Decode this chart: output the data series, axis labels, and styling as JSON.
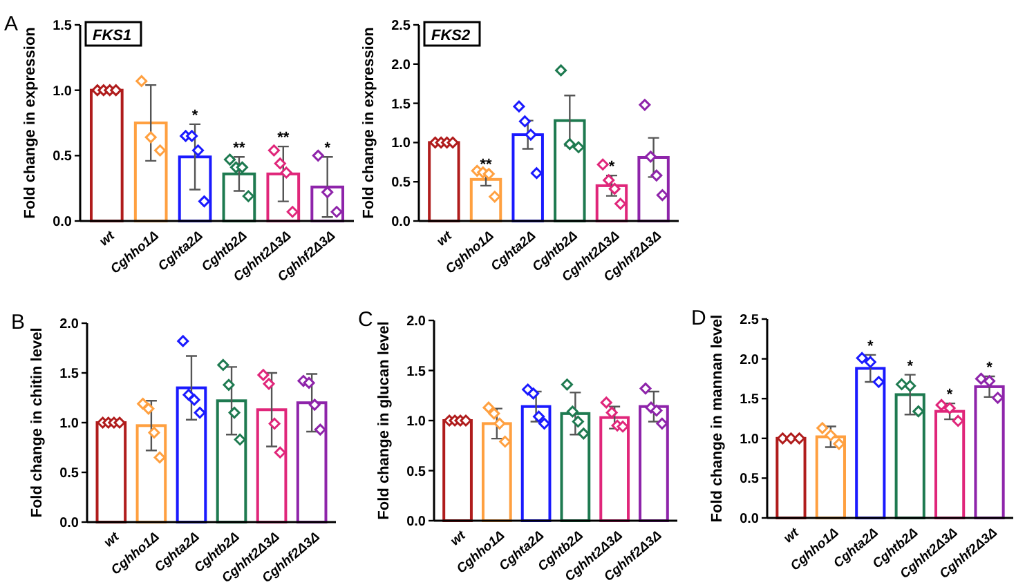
{
  "chart_data": [
    {
      "type": "bar",
      "title": "FKS1",
      "ylabel": "Fold change in expression",
      "categories": [
        "wt",
        "Cghho1Δ",
        "Cghta2Δ",
        "Cghtb2Δ",
        "Cghht2Δ3Δ",
        "Cghhf2Δ3Δ"
      ],
      "series": [
        {
          "values": [
            1.0,
            0.75,
            0.49,
            0.36,
            0.36,
            0.26
          ],
          "colors": [
            "#b01c1c",
            "#ffa040",
            "#1a1aff",
            "#1e7a50",
            "#e0267a",
            "#8e24aa"
          ],
          "errors": [
            0,
            0.29,
            0.25,
            0.13,
            0.21,
            0.23
          ]
        },
        {
          "type": "scatter",
          "marker": "diamond",
          "x": [
            "wt",
            "wt",
            "wt",
            "wt",
            "Cghho1Δ",
            "Cghho1Δ",
            "Cghho1Δ",
            "Cghta2Δ",
            "Cghta2Δ",
            "Cghta2Δ",
            "Cghta2Δ",
            "Cghtb2Δ",
            "Cghtb2Δ",
            "Cghtb2Δ",
            "Cghtb2Δ",
            "Cghht2Δ3Δ",
            "Cghht2Δ3Δ",
            "Cghht2Δ3Δ",
            "Cghht2Δ3Δ",
            "Cghhf2Δ3Δ",
            "Cghhf2Δ3Δ",
            "Cghhf2Δ3Δ"
          ],
          "values": [
            1,
            1,
            1,
            1,
            1.07,
            0.64,
            0.54,
            0.65,
            0.65,
            0.54,
            0.15,
            0.47,
            0.41,
            0.41,
            0.19,
            0.54,
            0.44,
            0.37,
            0.07,
            0.5,
            0.22,
            0.07
          ],
          "colors": [
            "#b01c1c",
            "#b01c1c",
            "#b01c1c",
            "#b01c1c",
            "#ffa040",
            "#ffa040",
            "#ffa040",
            "#1a1aff",
            "#1a1aff",
            "#1a1aff",
            "#1a1aff",
            "#1e7a50",
            "#1e7a50",
            "#1e7a50",
            "#1e7a50",
            "#e0267a",
            "#e0267a",
            "#e0267a",
            "#e0267a",
            "#8e24aa",
            "#8e24aa",
            "#8e24aa"
          ]
        }
      ],
      "ylim": [
        0,
        1.5
      ],
      "yticks": [
        {
          "value": 0,
          "label": "0.0"
        },
        0.5,
        {
          "value": 1,
          "label": "1.0"
        },
        1.5
      ],
      "annotations": [
        "A",
        {
          "text": "*",
          "x": "Cghta2Δ",
          "y": 0.74
        },
        {
          "text": "**",
          "x": "Cghtb2Δ",
          "y": 0.49
        },
        {
          "text": "**",
          "x": "Cghht2Δ3Δ",
          "y": 0.57
        },
        {
          "text": "*",
          "x": "Cghhf2Δ3Δ",
          "y": 0.49
        }
      ]
    },
    {
      "type": "bar",
      "title": "FKS2",
      "ylabel": "Fold change in expression",
      "categories": [
        "wt",
        "Cghho1Δ",
        "Cghta2Δ",
        "Cghtb2Δ",
        "Cghht2Δ3Δ",
        "Cghhf2Δ3Δ"
      ],
      "series": [
        {
          "values": [
            1.0,
            0.53,
            1.1,
            1.28,
            0.45,
            0.81
          ],
          "colors": [
            "#b01c1c",
            "#ffa040",
            "#1a1aff",
            "#1e7a50",
            "#e0267a",
            "#8e24aa"
          ],
          "errors": [
            0,
            0.08,
            0.18,
            0.32,
            0.13,
            0.25
          ]
        },
        {
          "type": "scatter",
          "marker": "diamond",
          "x": [
            "wt",
            "wt",
            "wt",
            "wt",
            "Cghho1Δ",
            "Cghho1Δ",
            "Cghho1Δ",
            "Cghho1Δ",
            "Cghta2Δ",
            "Cghta2Δ",
            "Cghta2Δ",
            "Cghta2Δ",
            "Cghtb2Δ",
            "Cghtb2Δ",
            "Cghtb2Δ",
            "Cghht2Δ3Δ",
            "Cghht2Δ3Δ",
            "Cghht2Δ3Δ",
            "Cghht2Δ3Δ",
            "Cghhf2Δ3Δ",
            "Cghhf2Δ3Δ",
            "Cghhf2Δ3Δ",
            "Cghhf2Δ3Δ"
          ],
          "values": [
            1,
            1,
            1,
            1,
            0.64,
            0.62,
            0.6,
            0.31,
            1.46,
            1.27,
            1.1,
            0.61,
            1.92,
            0.98,
            0.94,
            0.72,
            0.52,
            0.41,
            0.22,
            1.48,
            0.82,
            0.58,
            0.33
          ],
          "colors": [
            "#b01c1c",
            "#b01c1c",
            "#b01c1c",
            "#b01c1c",
            "#ffa040",
            "#ffa040",
            "#ffa040",
            "#ffa040",
            "#1a1aff",
            "#1a1aff",
            "#1a1aff",
            "#1a1aff",
            "#1e7a50",
            "#1e7a50",
            "#1e7a50",
            "#e0267a",
            "#e0267a",
            "#e0267a",
            "#e0267a",
            "#8e24aa",
            "#8e24aa",
            "#8e24aa",
            "#8e24aa"
          ]
        }
      ],
      "ylim": [
        0,
        2.5
      ],
      "yticks": [
        {
          "value": 0,
          "label": "0.0"
        },
        0.5,
        {
          "value": 1,
          "label": "1.0"
        },
        1.5,
        {
          "value": 2,
          "label": "2.0"
        },
        2.5
      ],
      "annotations": [
        {
          "text": "**",
          "x": "Cghho1Δ",
          "y": 0.61
        },
        {
          "text": "*",
          "x": "Cghht2Δ3Δ",
          "y": 0.58
        }
      ]
    },
    {
      "type": "bar",
      "ylabel": "Fold change in chitin level",
      "categories": [
        "wt",
        "Cghho1Δ",
        "Cghta2Δ",
        "Cghtb2Δ",
        "Cghht2Δ3Δ",
        "Cghhf2Δ3Δ"
      ],
      "series": [
        {
          "values": [
            1.0,
            0.97,
            1.35,
            1.22,
            1.13,
            1.2
          ],
          "colors": [
            "#b01c1c",
            "#ffa040",
            "#1a1aff",
            "#1e7a50",
            "#e0267a",
            "#8e24aa"
          ],
          "errors": [
            0,
            0.25,
            0.32,
            0.34,
            0.37,
            0.29
          ]
        },
        {
          "type": "scatter",
          "marker": "diamond",
          "x": [
            "wt",
            "wt",
            "wt",
            "wt",
            "Cghho1Δ",
            "Cghho1Δ",
            "Cghho1Δ",
            "Cghho1Δ",
            "Cghta2Δ",
            "Cghta2Δ",
            "Cghta2Δ",
            "Cghta2Δ",
            "Cghtb2Δ",
            "Cghtb2Δ",
            "Cghtb2Δ",
            "Cghtb2Δ",
            "Cghht2Δ3Δ",
            "Cghht2Δ3Δ",
            "Cghht2Δ3Δ",
            "Cghht2Δ3Δ",
            "Cghhf2Δ3Δ",
            "Cghhf2Δ3Δ",
            "Cghhf2Δ3Δ",
            "Cghhf2Δ3Δ"
          ],
          "values": [
            1,
            1,
            1,
            1,
            1.19,
            1.14,
            0.9,
            0.65,
            1.82,
            1.28,
            1.23,
            1.1,
            1.58,
            1.38,
            1.1,
            0.83,
            1.48,
            1.39,
            0.99,
            0.7,
            1.42,
            1.4,
            1.18,
            0.93
          ],
          "colors": [
            "#b01c1c",
            "#b01c1c",
            "#b01c1c",
            "#b01c1c",
            "#ffa040",
            "#ffa040",
            "#ffa040",
            "#ffa040",
            "#1a1aff",
            "#1a1aff",
            "#1a1aff",
            "#1a1aff",
            "#1e7a50",
            "#1e7a50",
            "#1e7a50",
            "#1e7a50",
            "#e0267a",
            "#e0267a",
            "#e0267a",
            "#e0267a",
            "#8e24aa",
            "#8e24aa",
            "#8e24aa",
            "#8e24aa"
          ]
        }
      ],
      "ylim": [
        0,
        2
      ],
      "yticks": [
        {
          "value": 0,
          "label": "0.0"
        },
        0.5,
        {
          "value": 1,
          "label": "1.0"
        },
        1.5,
        {
          "value": 2,
          "label": "2.0"
        }
      ],
      "annotations": [
        "B"
      ]
    },
    {
      "type": "bar",
      "ylabel": "Fold change in glucan level",
      "categories": [
        "wt",
        "Cghho1Δ",
        "Cghta2Δ",
        "Cghtb2Δ",
        "Cghht2Δ3Δ",
        "Cghhf2Δ3Δ"
      ],
      "series": [
        {
          "values": [
            1.0,
            0.97,
            1.14,
            1.07,
            1.03,
            1.14
          ],
          "colors": [
            "#b01c1c",
            "#ffa040",
            "#1a1aff",
            "#1e7a50",
            "#e0267a",
            "#8e24aa"
          ],
          "errors": [
            0,
            0.15,
            0.15,
            0.21,
            0.11,
            0.15
          ]
        },
        {
          "type": "scatter",
          "marker": "diamond",
          "x": [
            "wt",
            "wt",
            "wt",
            "wt",
            "Cghho1Δ",
            "Cghho1Δ",
            "Cghho1Δ",
            "Cghho1Δ",
            "Cghta2Δ",
            "Cghta2Δ",
            "Cghta2Δ",
            "Cghta2Δ",
            "Cghtb2Δ",
            "Cghtb2Δ",
            "Cghtb2Δ",
            "Cghtb2Δ",
            "Cghht2Δ3Δ",
            "Cghht2Δ3Δ",
            "Cghht2Δ3Δ",
            "Cghht2Δ3Δ",
            "Cghhf2Δ3Δ",
            "Cghhf2Δ3Δ",
            "Cghhf2Δ3Δ",
            "Cghhf2Δ3Δ"
          ],
          "values": [
            1,
            1,
            1,
            1,
            1.13,
            1.07,
            0.97,
            0.79,
            1.31,
            1.27,
            1.04,
            0.97,
            1.36,
            1.09,
            0.99,
            0.87,
            1.18,
            1.08,
            0.95,
            0.94,
            1.32,
            1.13,
            1.1,
            0.97
          ],
          "colors": [
            "#b01c1c",
            "#b01c1c",
            "#b01c1c",
            "#b01c1c",
            "#ffa040",
            "#ffa040",
            "#ffa040",
            "#ffa040",
            "#1a1aff",
            "#1a1aff",
            "#1a1aff",
            "#1a1aff",
            "#1e7a50",
            "#1e7a50",
            "#1e7a50",
            "#1e7a50",
            "#e0267a",
            "#e0267a",
            "#e0267a",
            "#e0267a",
            "#8e24aa",
            "#8e24aa",
            "#8e24aa",
            "#8e24aa"
          ]
        }
      ],
      "ylim": [
        0,
        2
      ],
      "yticks": [
        {
          "value": 0,
          "label": "0.0"
        },
        0.5,
        {
          "value": 1,
          "label": "1.0"
        },
        1.5,
        {
          "value": 2,
          "label": "2.0"
        }
      ],
      "annotations": [
        "C"
      ]
    },
    {
      "type": "bar",
      "ylabel": "Fold change in mannan level",
      "categories": [
        "wt",
        "Cghho1Δ",
        "Cghta2Δ",
        "Cghtb2Δ",
        "Cghht2Δ3Δ",
        "Cghhf2Δ3Δ"
      ],
      "series": [
        {
          "values": [
            1.0,
            1.02,
            1.88,
            1.55,
            1.34,
            1.65
          ],
          "colors": [
            "#b01c1c",
            "#ffa040",
            "#1a1aff",
            "#1e7a50",
            "#e0267a",
            "#8e24aa"
          ],
          "errors": [
            0,
            0.13,
            0.17,
            0.25,
            0.1,
            0.13
          ]
        },
        {
          "type": "scatter",
          "marker": "diamond",
          "x": [
            "wt",
            "wt",
            "wt",
            "Cghho1Δ",
            "Cghho1Δ",
            "Cghho1Δ",
            "Cghta2Δ",
            "Cghta2Δ",
            "Cghta2Δ",
            "Cghtb2Δ",
            "Cghtb2Δ",
            "Cghtb2Δ",
            "Cghht2Δ3Δ",
            "Cghht2Δ3Δ",
            "Cghht2Δ3Δ",
            "Cghhf2Δ3Δ",
            "Cghhf2Δ3Δ",
            "Cghhf2Δ3Δ"
          ],
          "values": [
            1,
            1,
            1,
            1.13,
            1.04,
            0.93,
            2.01,
            1.96,
            1.71,
            1.68,
            1.66,
            1.34,
            1.42,
            1.38,
            1.22,
            1.75,
            1.72,
            1.51
          ],
          "colors": [
            "#b01c1c",
            "#b01c1c",
            "#b01c1c",
            "#ffa040",
            "#ffa040",
            "#ffa040",
            "#1a1aff",
            "#1a1aff",
            "#1a1aff",
            "#1e7a50",
            "#1e7a50",
            "#1e7a50",
            "#e0267a",
            "#e0267a",
            "#e0267a",
            "#8e24aa",
            "#8e24aa",
            "#8e24aa"
          ]
        }
      ],
      "ylim": [
        0,
        2.5
      ],
      "yticks": [
        {
          "value": 0,
          "label": "0.0"
        },
        0.5,
        {
          "value": 1,
          "label": "1.0"
        },
        1.5,
        {
          "value": 2,
          "label": "2.0"
        },
        2.5
      ],
      "annotations": [
        "D",
        {
          "text": "*",
          "x": "Cghta2Δ",
          "y": 2.05
        },
        {
          "text": "*",
          "x": "Cghtb2Δ",
          "y": 1.8
        },
        {
          "text": "*",
          "x": "Cghht2Δ3Δ",
          "y": 1.44
        },
        {
          "text": "*",
          "x": "Cghhf2Δ3Δ",
          "y": 1.78
        }
      ]
    }
  ]
}
